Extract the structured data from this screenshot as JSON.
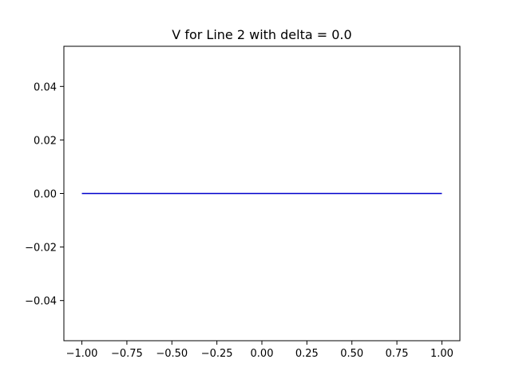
{
  "chart_data": {
    "type": "line",
    "title": "V for Line 2 with delta = 0.0",
    "xlabel": "",
    "ylabel": "",
    "xlim": [
      -1.1,
      1.1
    ],
    "ylim": [
      -0.055,
      0.055
    ],
    "grid": false,
    "xticks": [
      -1.0,
      -0.75,
      -0.5,
      -0.25,
      0.0,
      0.25,
      0.5,
      0.75,
      1.0
    ],
    "xtick_labels": [
      "−1.00",
      "−0.75",
      "−0.50",
      "−0.25",
      "0.00",
      "0.25",
      "0.50",
      "0.75",
      "1.00"
    ],
    "yticks": [
      -0.04,
      -0.02,
      0.0,
      0.02,
      0.04
    ],
    "ytick_labels": [
      "−0.04",
      "−0.02",
      "0.00",
      "0.02",
      "0.04"
    ],
    "series": [
      {
        "color": "#0000cc",
        "x": [
          -1.0,
          -0.5,
          0.0,
          0.5,
          1.0
        ],
        "y": [
          0.0,
          0.0,
          0.0,
          0.0,
          0.0
        ]
      }
    ],
    "colors": {
      "axes": "#000000",
      "background": "#ffffff"
    }
  }
}
